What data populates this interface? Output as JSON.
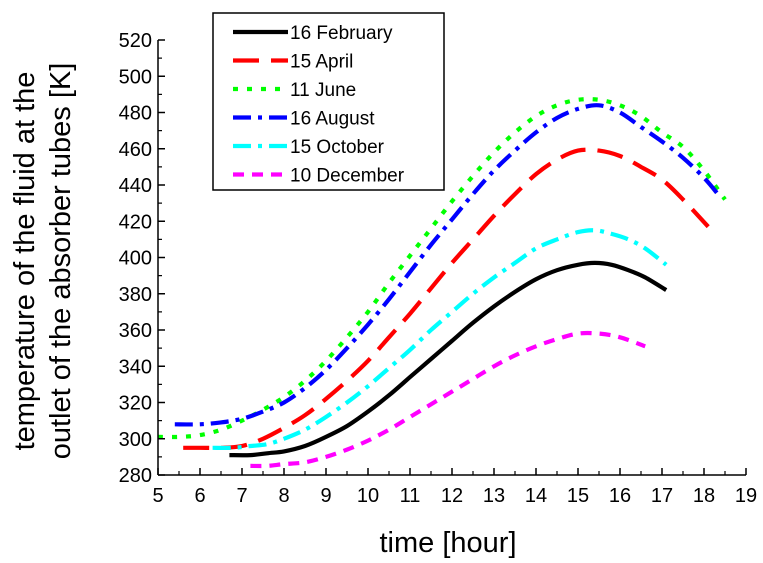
{
  "chart_data": {
    "type": "line",
    "title": "",
    "xlabel": "time [hour]",
    "ylabel_lines": [
      "temperature of the fluid at the",
      "outlet of the absorber tubes [K]"
    ],
    "xlim": [
      5,
      19
    ],
    "ylim": [
      280,
      520
    ],
    "x_ticks": [
      "5",
      "6",
      "7",
      "8",
      "9",
      "10",
      "11",
      "12",
      "13",
      "14",
      "15",
      "16",
      "17",
      "18",
      "19"
    ],
    "y_ticks": [
      "280",
      "300",
      "320",
      "340",
      "360",
      "380",
      "400",
      "420",
      "440",
      "460",
      "480",
      "500",
      "520"
    ],
    "grid": false,
    "legend_position": "top-left",
    "series": [
      {
        "name": "16 February",
        "color": "#000000",
        "style": "solid",
        "x": [
          6.7,
          7.2,
          7.6,
          8.0,
          8.5,
          9.0,
          9.5,
          10.0,
          10.5,
          11.0,
          11.5,
          12.0,
          12.5,
          13.0,
          13.5,
          14.0,
          14.5,
          15.0,
          15.4,
          15.8,
          16.2,
          16.6,
          17.1
        ],
        "y": [
          291,
          291,
          292,
          293,
          296,
          301,
          307,
          315,
          324,
          334,
          344,
          354,
          364,
          373,
          381,
          388,
          393,
          396,
          397,
          396,
          393,
          389,
          382
        ]
      },
      {
        "name": "15 April",
        "color": "#ff0000",
        "style": "long-dash",
        "x": [
          5.6,
          6.0,
          6.5,
          7.0,
          7.5,
          8.0,
          8.5,
          9.0,
          9.5,
          10.0,
          10.5,
          11.0,
          11.5,
          12.0,
          12.5,
          13.0,
          13.5,
          14.0,
          14.5,
          15.0,
          15.5,
          16.0,
          16.5,
          17.0,
          17.5,
          18.1
        ],
        "y": [
          295,
          295,
          295,
          296,
          300,
          306,
          313,
          322,
          332,
          343,
          356,
          369,
          383,
          397,
          410,
          423,
          435,
          446,
          454,
          459,
          459,
          456,
          450,
          443,
          432,
          417
        ]
      },
      {
        "name": "11 June",
        "color": "#00ff00",
        "style": "dot",
        "x": [
          5.0,
          5.5,
          6.0,
          6.5,
          7.0,
          7.5,
          8.0,
          8.5,
          9.0,
          9.5,
          10.0,
          10.5,
          11.0,
          11.5,
          12.0,
          12.5,
          13.0,
          13.5,
          14.0,
          14.5,
          15.0,
          15.5,
          16.0,
          16.5,
          17.0,
          17.5,
          18.0,
          18.5
        ],
        "y": [
          301,
          301,
          302,
          305,
          310,
          316,
          323,
          332,
          343,
          356,
          370,
          386,
          401,
          416,
          431,
          445,
          458,
          469,
          478,
          484,
          487,
          487,
          484,
          478,
          469,
          461,
          448,
          432
        ]
      },
      {
        "name": "16 August",
        "color": "#0000ff",
        "style": "dash-dot",
        "x": [
          5.4,
          6.0,
          6.5,
          7.0,
          7.5,
          8.0,
          8.5,
          9.0,
          9.5,
          10.0,
          10.5,
          11.0,
          11.5,
          12.0,
          12.5,
          13.0,
          13.5,
          14.0,
          14.5,
          15.0,
          15.5,
          16.0,
          16.5,
          17.0,
          17.5,
          18.0,
          18.4
        ],
        "y": [
          308,
          308,
          309,
          311,
          315,
          320,
          328,
          338,
          350,
          363,
          377,
          392,
          407,
          421,
          435,
          448,
          459,
          469,
          477,
          482,
          484,
          480,
          472,
          464,
          455,
          444,
          433
        ]
      },
      {
        "name": "15 October",
        "color": "#00ffff",
        "style": "dash-dot",
        "x": [
          6.3,
          6.8,
          7.2,
          7.6,
          8.0,
          8.5,
          9.0,
          9.5,
          10.0,
          10.5,
          11.0,
          11.5,
          12.0,
          12.5,
          13.0,
          13.5,
          14.0,
          14.5,
          15.0,
          15.4,
          15.8,
          16.2,
          16.6,
          17.1
        ],
        "y": [
          295,
          295,
          296,
          297,
          300,
          305,
          312,
          320,
          329,
          339,
          349,
          360,
          370,
          380,
          389,
          397,
          405,
          410,
          414,
          415,
          413,
          410,
          405,
          396
        ]
      },
      {
        "name": "10 December",
        "color": "#ff00ff",
        "style": "short-dash",
        "x": [
          7.2,
          7.6,
          8.0,
          8.5,
          9.0,
          9.5,
          10.0,
          10.5,
          11.0,
          11.5,
          12.0,
          12.5,
          13.0,
          13.5,
          14.0,
          14.5,
          15.0,
          15.5,
          16.0,
          16.6
        ],
        "y": [
          285,
          285,
          286,
          287,
          290,
          294,
          299,
          305,
          312,
          319,
          326,
          333,
          340,
          346,
          351,
          355,
          358,
          358,
          356,
          351
        ]
      }
    ]
  }
}
